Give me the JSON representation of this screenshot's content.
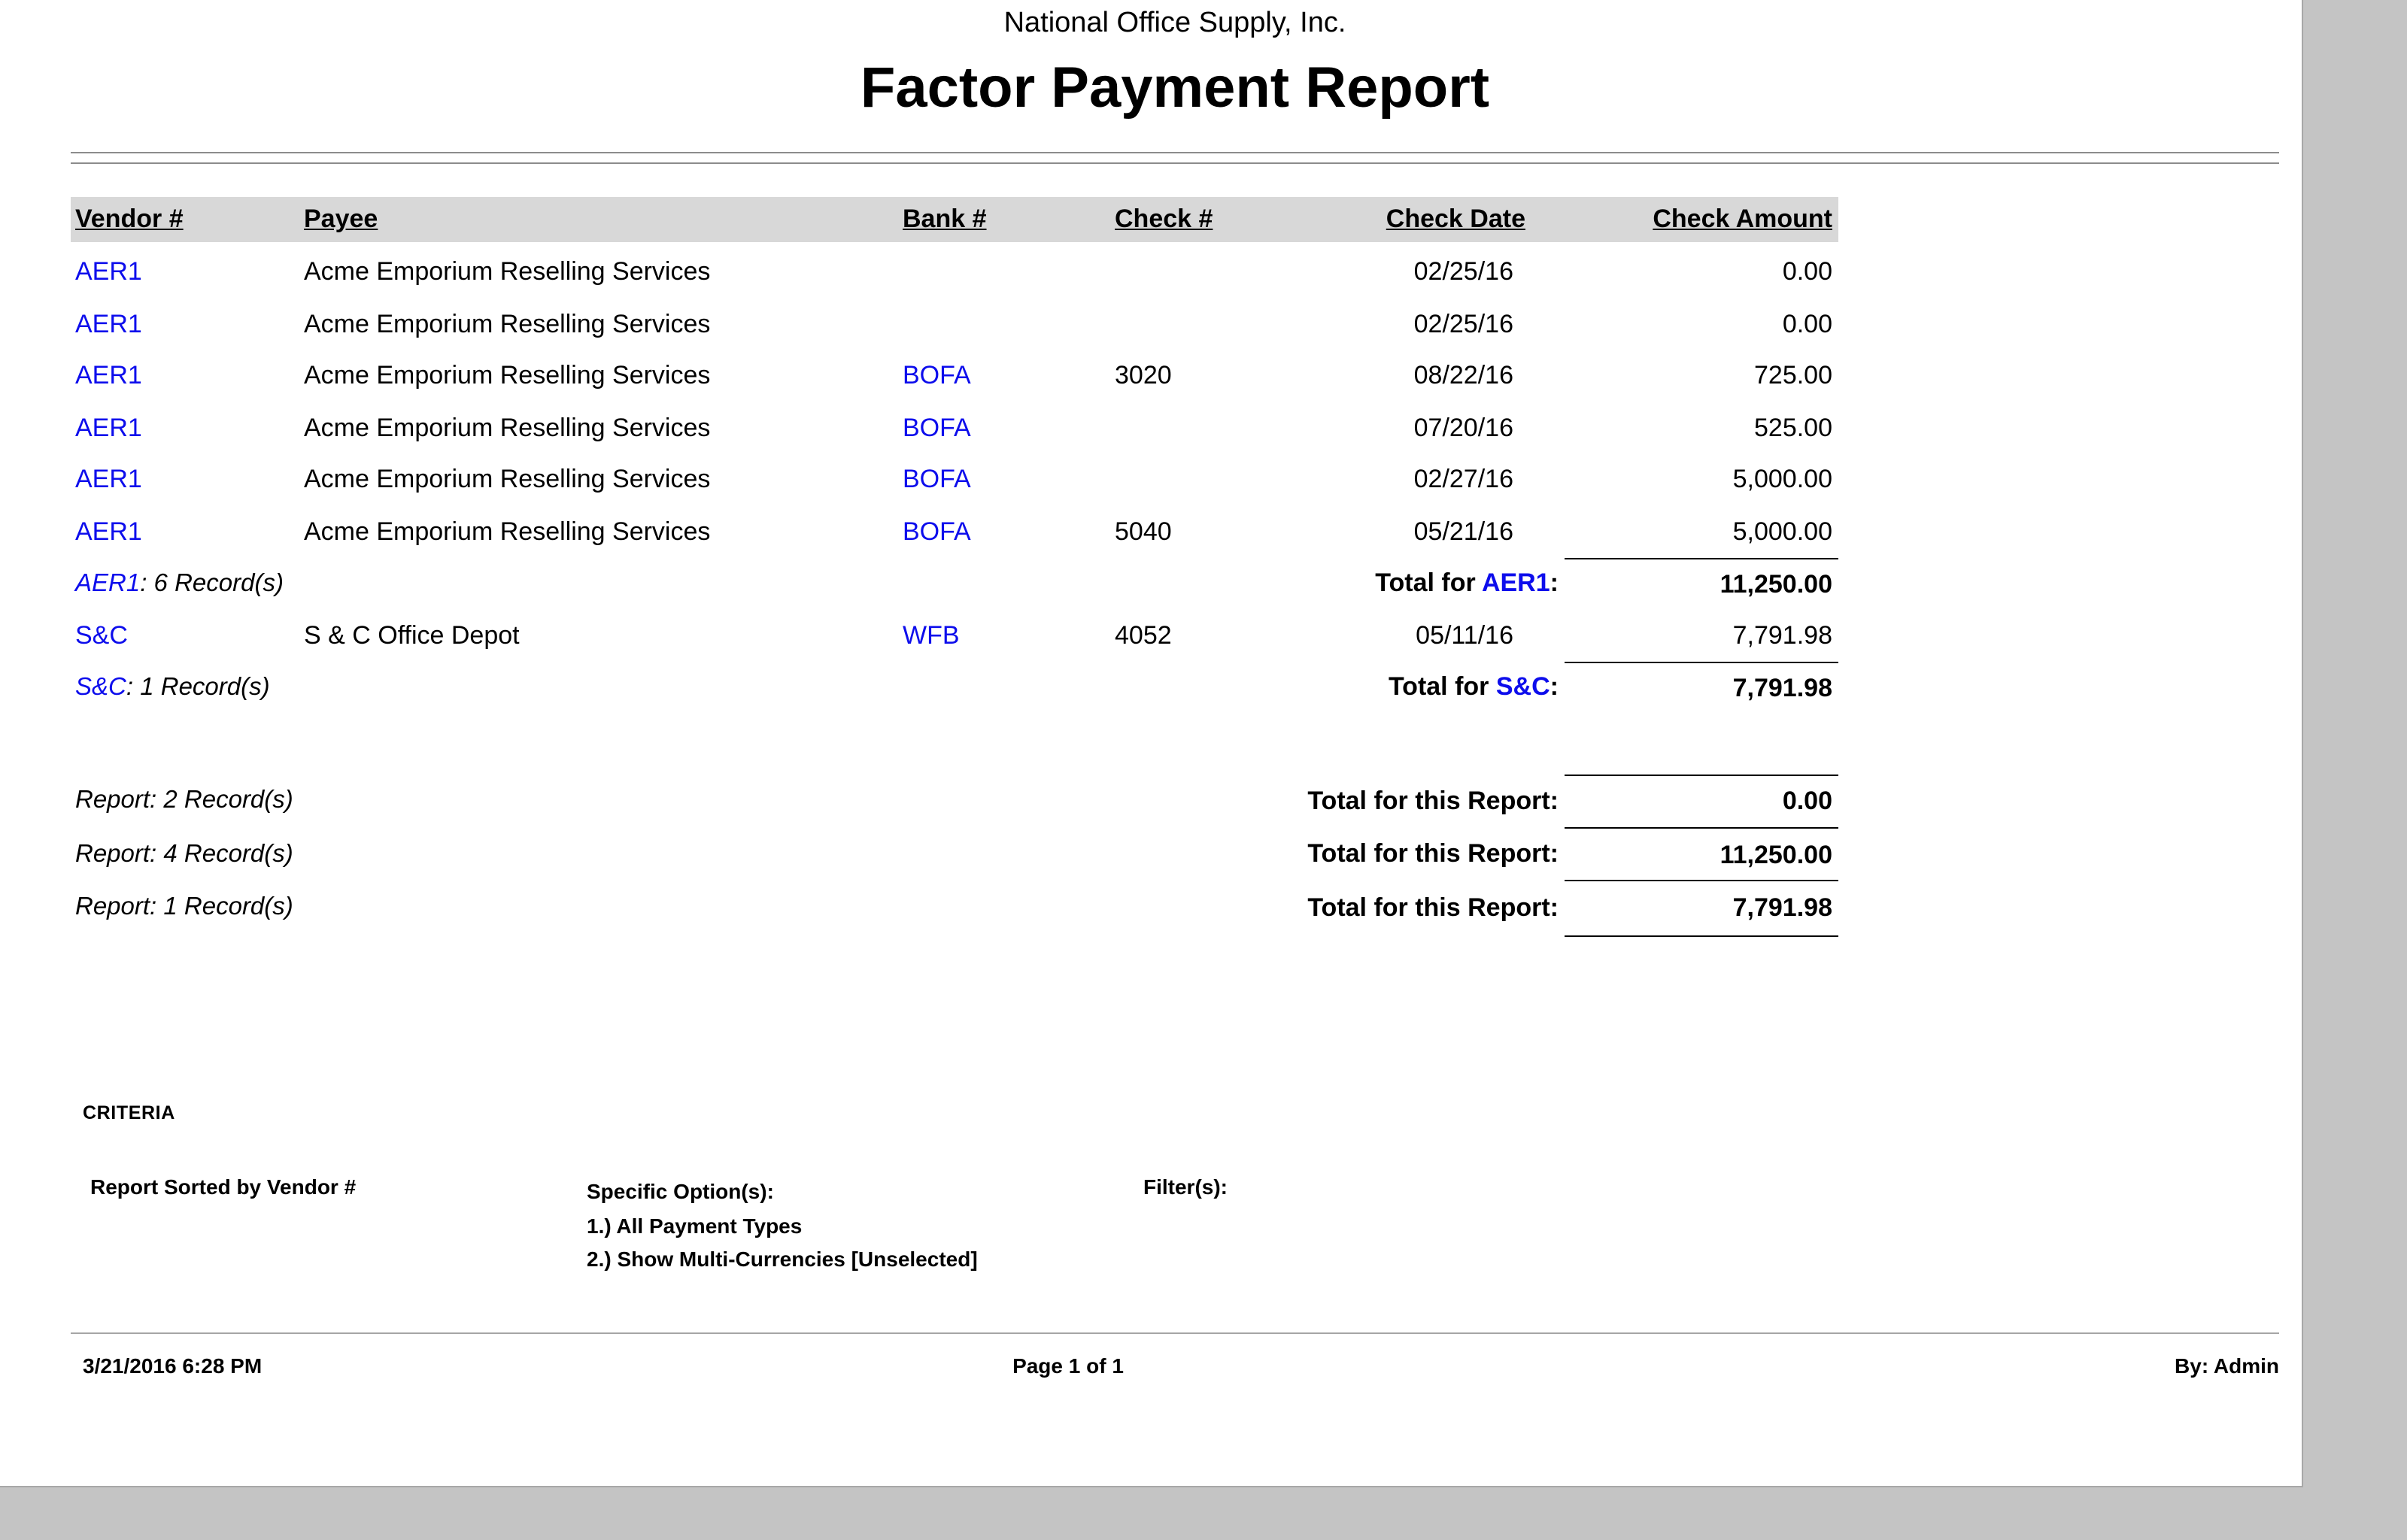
{
  "colors": {
    "link_blue": "#0d0dec",
    "header_band": "#d8d8d8"
  },
  "report": {
    "company": "National Office Supply, Inc.",
    "title": "Factor Payment Report"
  },
  "table": {
    "headers": {
      "vendor": "Vendor #",
      "payee": "Payee",
      "bank": "Bank #",
      "check": "Check #",
      "date": "Check Date",
      "amount": "Check Amount"
    },
    "groups": [
      {
        "rows": [
          {
            "vendor": "AER1",
            "payee": "Acme Emporium Reselling Services",
            "bank": "",
            "check": "",
            "date": "02/25/16",
            "amount": "0.00"
          },
          {
            "vendor": "AER1",
            "payee": "Acme Emporium Reselling Services",
            "bank": "",
            "check": "",
            "date": "02/25/16",
            "amount": "0.00"
          },
          {
            "vendor": "AER1",
            "payee": "Acme Emporium Reselling Services",
            "bank": "BOFA",
            "check": "3020",
            "date": "08/22/16",
            "amount": "725.00"
          },
          {
            "vendor": "AER1",
            "payee": "Acme Emporium Reselling Services",
            "bank": "BOFA",
            "check": "",
            "date": "07/20/16",
            "amount": "525.00"
          },
          {
            "vendor": "AER1",
            "payee": "Acme Emporium Reselling Services",
            "bank": "BOFA",
            "check": "",
            "date": "02/27/16",
            "amount": "5,000.00"
          },
          {
            "vendor": "AER1",
            "payee": "Acme Emporium Reselling Services",
            "bank": "BOFA",
            "check": "5040",
            "date": "05/21/16",
            "amount": "5,000.00"
          }
        ],
        "summary_code": "AER1",
        "summary_rest": ": 6 Record(s)",
        "total_prefix": "Total for ",
        "total_code": "AER1",
        "total_suffix": ":",
        "total_amount": "11,250.00"
      },
      {
        "rows": [
          {
            "vendor": "S&C",
            "payee": "S & C Office Depot",
            "bank": "WFB",
            "check": "4052",
            "date": "05/11/16",
            "amount": "7,791.98"
          }
        ],
        "summary_code": "S&C",
        "summary_rest": ": 1 Record(s)",
        "total_prefix": "Total for ",
        "total_code": "S&C",
        "total_suffix": ":",
        "total_amount": "7,791.98"
      }
    ]
  },
  "report_totals": [
    {
      "left": "Report: 2 Record(s)",
      "label": "Total for this Report:",
      "amount": "0.00"
    },
    {
      "left": "Report: 4 Record(s)",
      "label": "Total for this Report:",
      "amount": "11,250.00"
    },
    {
      "left": "Report: 1 Record(s)",
      "label": "Total for this Report:",
      "amount": "7,791.98"
    }
  ],
  "criteria": {
    "heading": "CRITERIA",
    "sorted_by": "Report Sorted by Vendor #",
    "specific_options_label": "Specific Option(s):",
    "options": [
      "1.) All Payment Types",
      "2.) Show Multi-Currencies [Unselected]"
    ],
    "filters_label": "Filter(s):"
  },
  "footer": {
    "datetime": "3/21/2016 6:28 PM",
    "page": "Page 1 of 1",
    "by": "By: Admin"
  }
}
